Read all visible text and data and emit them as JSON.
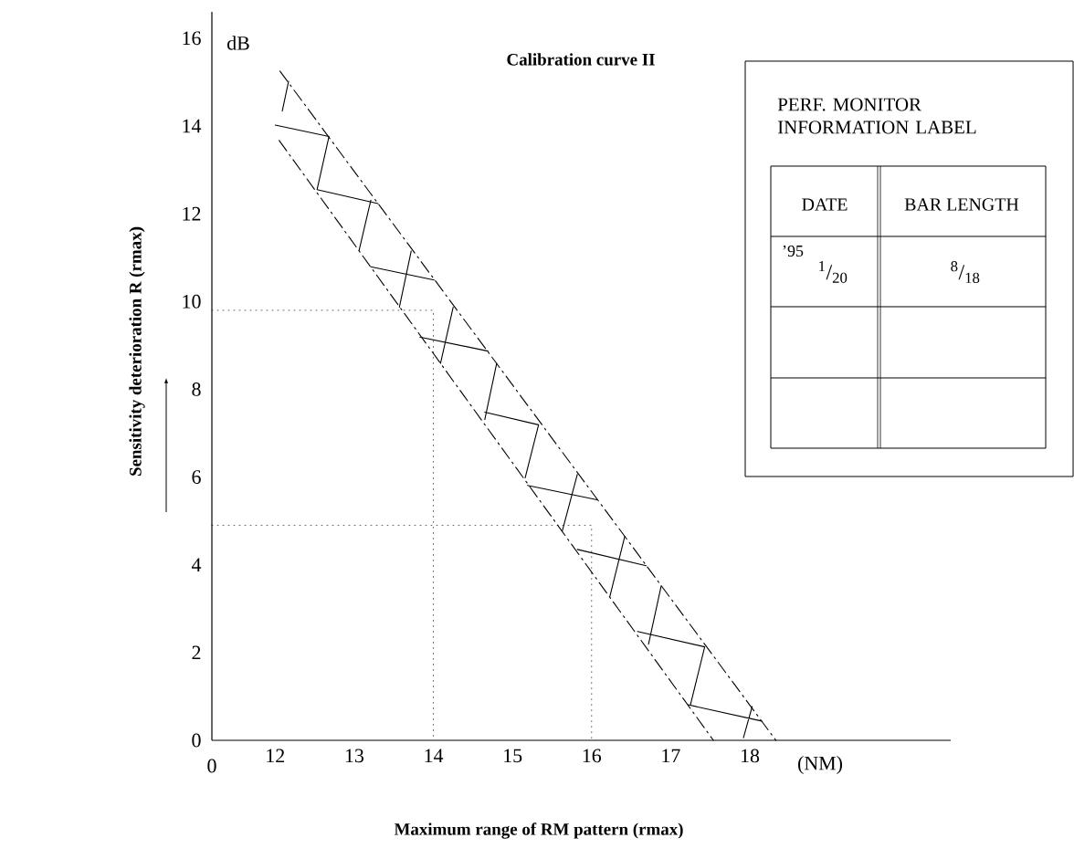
{
  "chart_data": {
    "type": "line",
    "title": "Calibration curve II",
    "xlabel": "Maximum range of RM pattern (rmax)",
    "ylabel": "Sensitivity deterioration R (rmax)",
    "xlim": [
      11.2,
      20.54
    ],
    "ylim": [
      0,
      16.6
    ],
    "xticks": [
      12,
      13,
      14,
      15,
      16,
      17,
      18
    ],
    "yticks": [
      0,
      2,
      4,
      6,
      8,
      10,
      12,
      14,
      16
    ],
    "annotations": [
      "dB",
      "0",
      "(NM)",
      "PERF. MONITOR INFORMATION LABEL",
      "DATE",
      "BAR LENGTH",
      "’95",
      "$^{1}$/$_{20}$",
      "$^{8}$/$_{18}$"
    ],
    "series": [
      {
        "color": "#000000",
        "line_style": "dashed",
        "x": [
          12.06,
          18.33
        ],
        "values": [
          15.25,
          0
        ]
      },
      {
        "color": "#000000",
        "line_style": "dashed",
        "x": [
          12.05,
          17.54
        ],
        "values": [
          13.67,
          0
        ]
      },
      {
        "color": "#000000",
        "line_style": "solid",
        "x": [
          12.17,
          12.09,
          null,
          12.0,
          12.68,
          12.53,
          13.3,
          null,
          13.21,
          13.06,
          null,
          13.21,
          14.01,
          null,
          13.72,
          13.57,
          null,
          13.83,
          14.69,
          null,
          14.25,
          14.09,
          null,
          14.8,
          14.65,
          null,
          14.65,
          15.33,
          15.16,
          null,
          15.19,
          16.07,
          null,
          15.82,
          15.63,
          null,
          15.82,
          16.69,
          null,
          16.42,
          16.23,
          null,
          16.58,
          17.43,
          17.25,
          null,
          16.88,
          16.72,
          null,
          17.22,
          18.15,
          null,
          18.03,
          17.92
        ],
        "values": [
          15.02,
          14.34,
          null,
          14.02,
          13.76,
          12.55,
          12.23,
          null,
          12.31,
          11.16,
          null,
          10.79,
          10.49,
          null,
          11.15,
          9.87,
          null,
          9.19,
          8.87,
          null,
          9.87,
          8.59,
          null,
          8.59,
          7.31,
          null,
          7.48,
          7.19,
          5.98,
          null,
          5.81,
          5.48,
          null,
          6.06,
          4.77,
          null,
          4.35,
          3.98,
          null,
          4.65,
          3.27,
          null,
          2.48,
          2.13,
          0.81,
          null,
          3.52,
          2.19,
          null,
          0.81,
          0.44,
          null,
          0.77,
          0.06
        ]
      },
      {
        "color": "#000000",
        "line_style": "dotted",
        "x": [
          11.2,
          14,
          14
        ],
        "values": [
          9.8,
          9.8,
          0
        ]
      },
      {
        "color": "#000000",
        "line_style": "dotted",
        "x": [
          11.2,
          16,
          16
        ],
        "values": [
          4.9,
          4.9,
          0
        ]
      }
    ]
  }
}
